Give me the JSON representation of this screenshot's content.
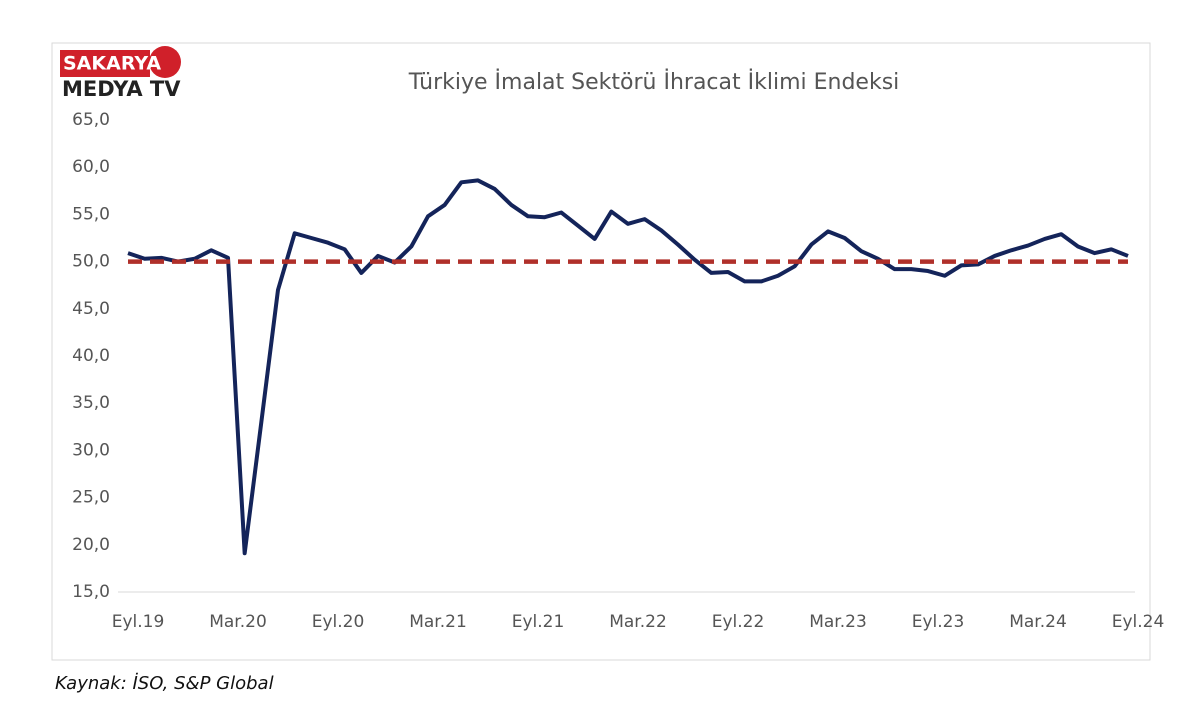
{
  "chart_data": {
    "type": "line",
    "title": "Türkiye İmalat Sektörü İhracat İklimi Endeksi",
    "logo": [
      "SAKARYA",
      "MEDYA TV"
    ],
    "source": "Kaynak: İSO, S&P Global",
    "categories": [
      "Eyl.19",
      null,
      null,
      null,
      null,
      null,
      "Mar.20",
      null,
      null,
      null,
      null,
      null,
      "Eyl.20",
      null,
      null,
      null,
      null,
      null,
      "Mar.21",
      null,
      null,
      null,
      null,
      null,
      "Eyl.21",
      null,
      null,
      null,
      null,
      null,
      "Mar.22",
      null,
      null,
      null,
      null,
      null,
      "Eyl.22",
      null,
      null,
      null,
      null,
      null,
      "Mar.23",
      null,
      null,
      null,
      null,
      null,
      "Eyl.23",
      null,
      null,
      null,
      null,
      null,
      "Mar.24",
      null,
      null,
      null,
      null,
      null,
      "Eyl.24"
    ],
    "series": [
      {
        "color": "#14245a",
        "values": [
          50.9,
          50.3,
          50.4,
          50.0,
          50.3,
          51.2,
          50.4,
          19.1,
          33.0,
          47.0,
          53.0,
          52.5,
          52.0,
          51.3,
          48.8,
          50.6,
          49.9,
          51.6,
          54.8,
          56.0,
          58.4,
          58.6,
          57.7,
          56.0,
          54.8,
          54.7,
          55.2,
          53.8,
          52.4,
          55.3,
          54.0,
          54.5,
          53.3,
          51.8,
          50.2,
          48.8,
          48.9,
          47.9,
          47.9,
          48.5,
          49.5,
          51.8,
          53.2,
          52.5,
          51.1,
          50.3,
          49.2,
          49.2,
          49.0,
          48.5,
          49.6,
          49.7,
          50.6,
          51.2,
          51.7,
          52.4,
          52.9,
          51.6,
          50.9,
          51.3,
          50.6
        ]
      }
    ],
    "reference_line": {
      "value": 50,
      "color": "#b0302a"
    },
    "ylim": [
      15,
      65
    ],
    "yticks": [
      {
        "value": 15,
        "label": "15,0"
      },
      {
        "value": 20,
        "label": "20,0"
      },
      {
        "value": 25,
        "label": "25,0"
      },
      {
        "value": 30,
        "label": "30,0"
      },
      {
        "value": 35,
        "label": "35,0"
      },
      {
        "value": 40,
        "label": "40,0"
      },
      {
        "value": 45,
        "label": "45,0"
      },
      {
        "value": 50,
        "label": "50,0"
      },
      {
        "value": 55,
        "label": "55,0"
      },
      {
        "value": 60,
        "label": "60,0"
      },
      {
        "value": 65,
        "label": "65,0"
      }
    ]
  }
}
